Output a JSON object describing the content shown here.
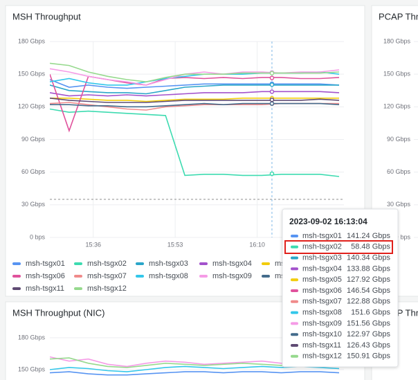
{
  "chart_data": [
    {
      "type": "line",
      "title": "MSH Throughput",
      "x": [
        "15:27",
        "15:31",
        "15:35",
        "15:39",
        "15:43",
        "15:47",
        "15:51",
        "15:55",
        "15:59",
        "16:03",
        "16:07",
        "16:11",
        "16:15",
        "16:19",
        "16:23",
        "16:27"
      ],
      "xlim": [
        "15:27",
        "16:28"
      ],
      "xticks": [
        "15:36",
        "15:53",
        "16:10"
      ],
      "ylim": [
        0,
        180
      ],
      "yticks": [
        {
          "value": 0,
          "label": "0 bps"
        },
        {
          "value": 30,
          "label": "30 Gbps"
        },
        {
          "value": 60,
          "label": "60 Gbps"
        },
        {
          "value": 90,
          "label": "90 Gbps"
        },
        {
          "value": 120,
          "label": "120 Gbps"
        },
        {
          "value": 150,
          "label": "150 Gbps"
        },
        {
          "value": 180,
          "label": "180 Gbps"
        }
      ],
      "grid": true,
      "threshold": 35,
      "series": [
        {
          "name": "msh-tsgx01",
          "color": "#5794f2",
          "values": [
            145,
            138,
            140,
            138,
            137,
            138,
            139,
            140,
            141,
            141,
            141,
            141,
            141,
            141,
            141,
            140
          ]
        },
        {
          "name": "msh-tsgx02",
          "color": "#3ddbb0",
          "values": [
            118,
            115,
            116,
            115,
            114,
            113,
            112,
            57,
            58,
            58,
            57,
            57,
            58,
            58,
            58,
            56
          ]
        },
        {
          "name": "msh-tsgx03",
          "color": "#2aa6c9",
          "values": [
            140,
            135,
            134,
            133,
            133,
            132,
            135,
            138,
            139,
            140,
            140,
            140,
            140,
            140,
            140,
            140
          ]
        },
        {
          "name": "msh-tsgx04",
          "color": "#a352cc",
          "values": [
            133,
            130,
            131,
            130,
            131,
            130,
            131,
            132,
            133,
            133,
            133,
            134,
            134,
            134,
            134,
            133
          ]
        },
        {
          "name": "msh-tsgx05",
          "color": "#f2cc0c",
          "values": [
            128,
            128,
            127,
            126,
            126,
            125,
            126,
            127,
            127,
            127,
            128,
            128,
            128,
            128,
            128,
            128
          ]
        },
        {
          "name": "msh-tsgx06",
          "color": "#e0529c",
          "values": [
            150,
            98,
            148,
            145,
            142,
            140,
            146,
            147,
            146,
            147,
            146,
            147,
            147,
            146,
            146,
            147
          ]
        },
        {
          "name": "msh-tsgx07",
          "color": "#f08b8b",
          "values": [
            123,
            124,
            122,
            120,
            118,
            117,
            120,
            121,
            122,
            122,
            122,
            122,
            123,
            123,
            123,
            123
          ]
        },
        {
          "name": "msh-tsgx08",
          "color": "#33c7ea",
          "values": [
            143,
            146,
            142,
            140,
            140,
            143,
            146,
            148,
            150,
            150,
            150,
            151,
            151,
            151,
            152,
            150
          ]
        },
        {
          "name": "msh-tsgx09",
          "color": "#f59be6",
          "values": [
            155,
            152,
            148,
            145,
            143,
            140,
            145,
            150,
            152,
            150,
            152,
            152,
            151,
            152,
            152,
            154
          ]
        },
        {
          "name": "msh-tsgx10",
          "color": "#446c8c",
          "values": [
            122,
            122,
            121,
            121,
            120,
            120,
            121,
            122,
            123,
            122,
            123,
            123,
            123,
            123,
            123,
            122
          ]
        },
        {
          "name": "msh-tsgx11",
          "color": "#5f4b73",
          "values": [
            128,
            126,
            125,
            124,
            124,
            124,
            125,
            126,
            126,
            126,
            126,
            126,
            126,
            126,
            127,
            126
          ]
        },
        {
          "name": "msh-tsgx12",
          "color": "#96d98d",
          "values": [
            160,
            158,
            152,
            148,
            145,
            143,
            147,
            150,
            150,
            150,
            151,
            151,
            151,
            151,
            151,
            152
          ]
        }
      ],
      "tooltip": {
        "time": "2023-09-02 16:13:04",
        "values": [
          141.24,
          58.48,
          140.34,
          133.88,
          127.92,
          146.54,
          122.88,
          151.6,
          151.56,
          122.97,
          126.43,
          150.91
        ],
        "value_labels": [
          "141.24 Gbps",
          "58.48 Gbps",
          "140.34 Gbps",
          "133.88 Gbps",
          "127.92 Gbps",
          "146.54 Gbps",
          "122.88 Gbps",
          "151.6 Gbps",
          "151.56 Gbps",
          "122.97 Gbps",
          "126.43 Gbps",
          "150.91 Gbps"
        ]
      }
    },
    {
      "type": "line",
      "title": "PCAP Thro",
      "ylim": [
        0,
        180
      ],
      "yticks": [
        {
          "value": 0,
          "label": "0 bps"
        },
        {
          "value": 30,
          "label": "30 Gbps"
        },
        {
          "value": 60,
          "label": "60 Gbps"
        },
        {
          "value": 90,
          "label": "90 Gbps"
        },
        {
          "value": 120,
          "label": "120 Gbps"
        },
        {
          "value": 150,
          "label": "150 Gbps"
        },
        {
          "value": 180,
          "label": "180 Gbps"
        }
      ],
      "grid": true
    },
    {
      "type": "line",
      "title": "MSH Throughput (NIC)",
      "x": [
        "15:27",
        "15:31",
        "15:35",
        "15:39",
        "15:43",
        "15:47",
        "15:51",
        "15:55",
        "15:59",
        "16:03",
        "16:07",
        "16:11",
        "16:15",
        "16:19",
        "16:23",
        "16:27"
      ],
      "xlim": [
        "15:27",
        "16:28"
      ],
      "ylim": [
        0,
        180
      ],
      "yticks": [
        {
          "value": 150,
          "label": "150 Gbps"
        },
        {
          "value": 180,
          "label": "180 Gbps"
        }
      ],
      "grid": true,
      "series": [
        {
          "color": "#f59be6",
          "values": [
            162,
            158,
            160,
            155,
            153,
            156,
            158,
            157,
            155,
            156,
            157,
            158,
            156,
            157,
            158,
            156
          ]
        },
        {
          "color": "#96d98d",
          "values": [
            160,
            161,
            156,
            153,
            152,
            154,
            156,
            155,
            154,
            155,
            156,
            155,
            154,
            156,
            155,
            154
          ]
        },
        {
          "color": "#33c7ea",
          "values": [
            150,
            152,
            151,
            149,
            148,
            150,
            152,
            153,
            152,
            151,
            152,
            153,
            152,
            153,
            152,
            151
          ]
        },
        {
          "color": "#5794f2",
          "values": [
            147,
            148,
            146,
            145,
            145,
            146,
            147,
            148,
            148,
            147,
            148,
            148,
            147,
            148,
            148,
            147
          ]
        }
      ]
    },
    {
      "type": "line",
      "title": "PCAP Throu"
    }
  ]
}
